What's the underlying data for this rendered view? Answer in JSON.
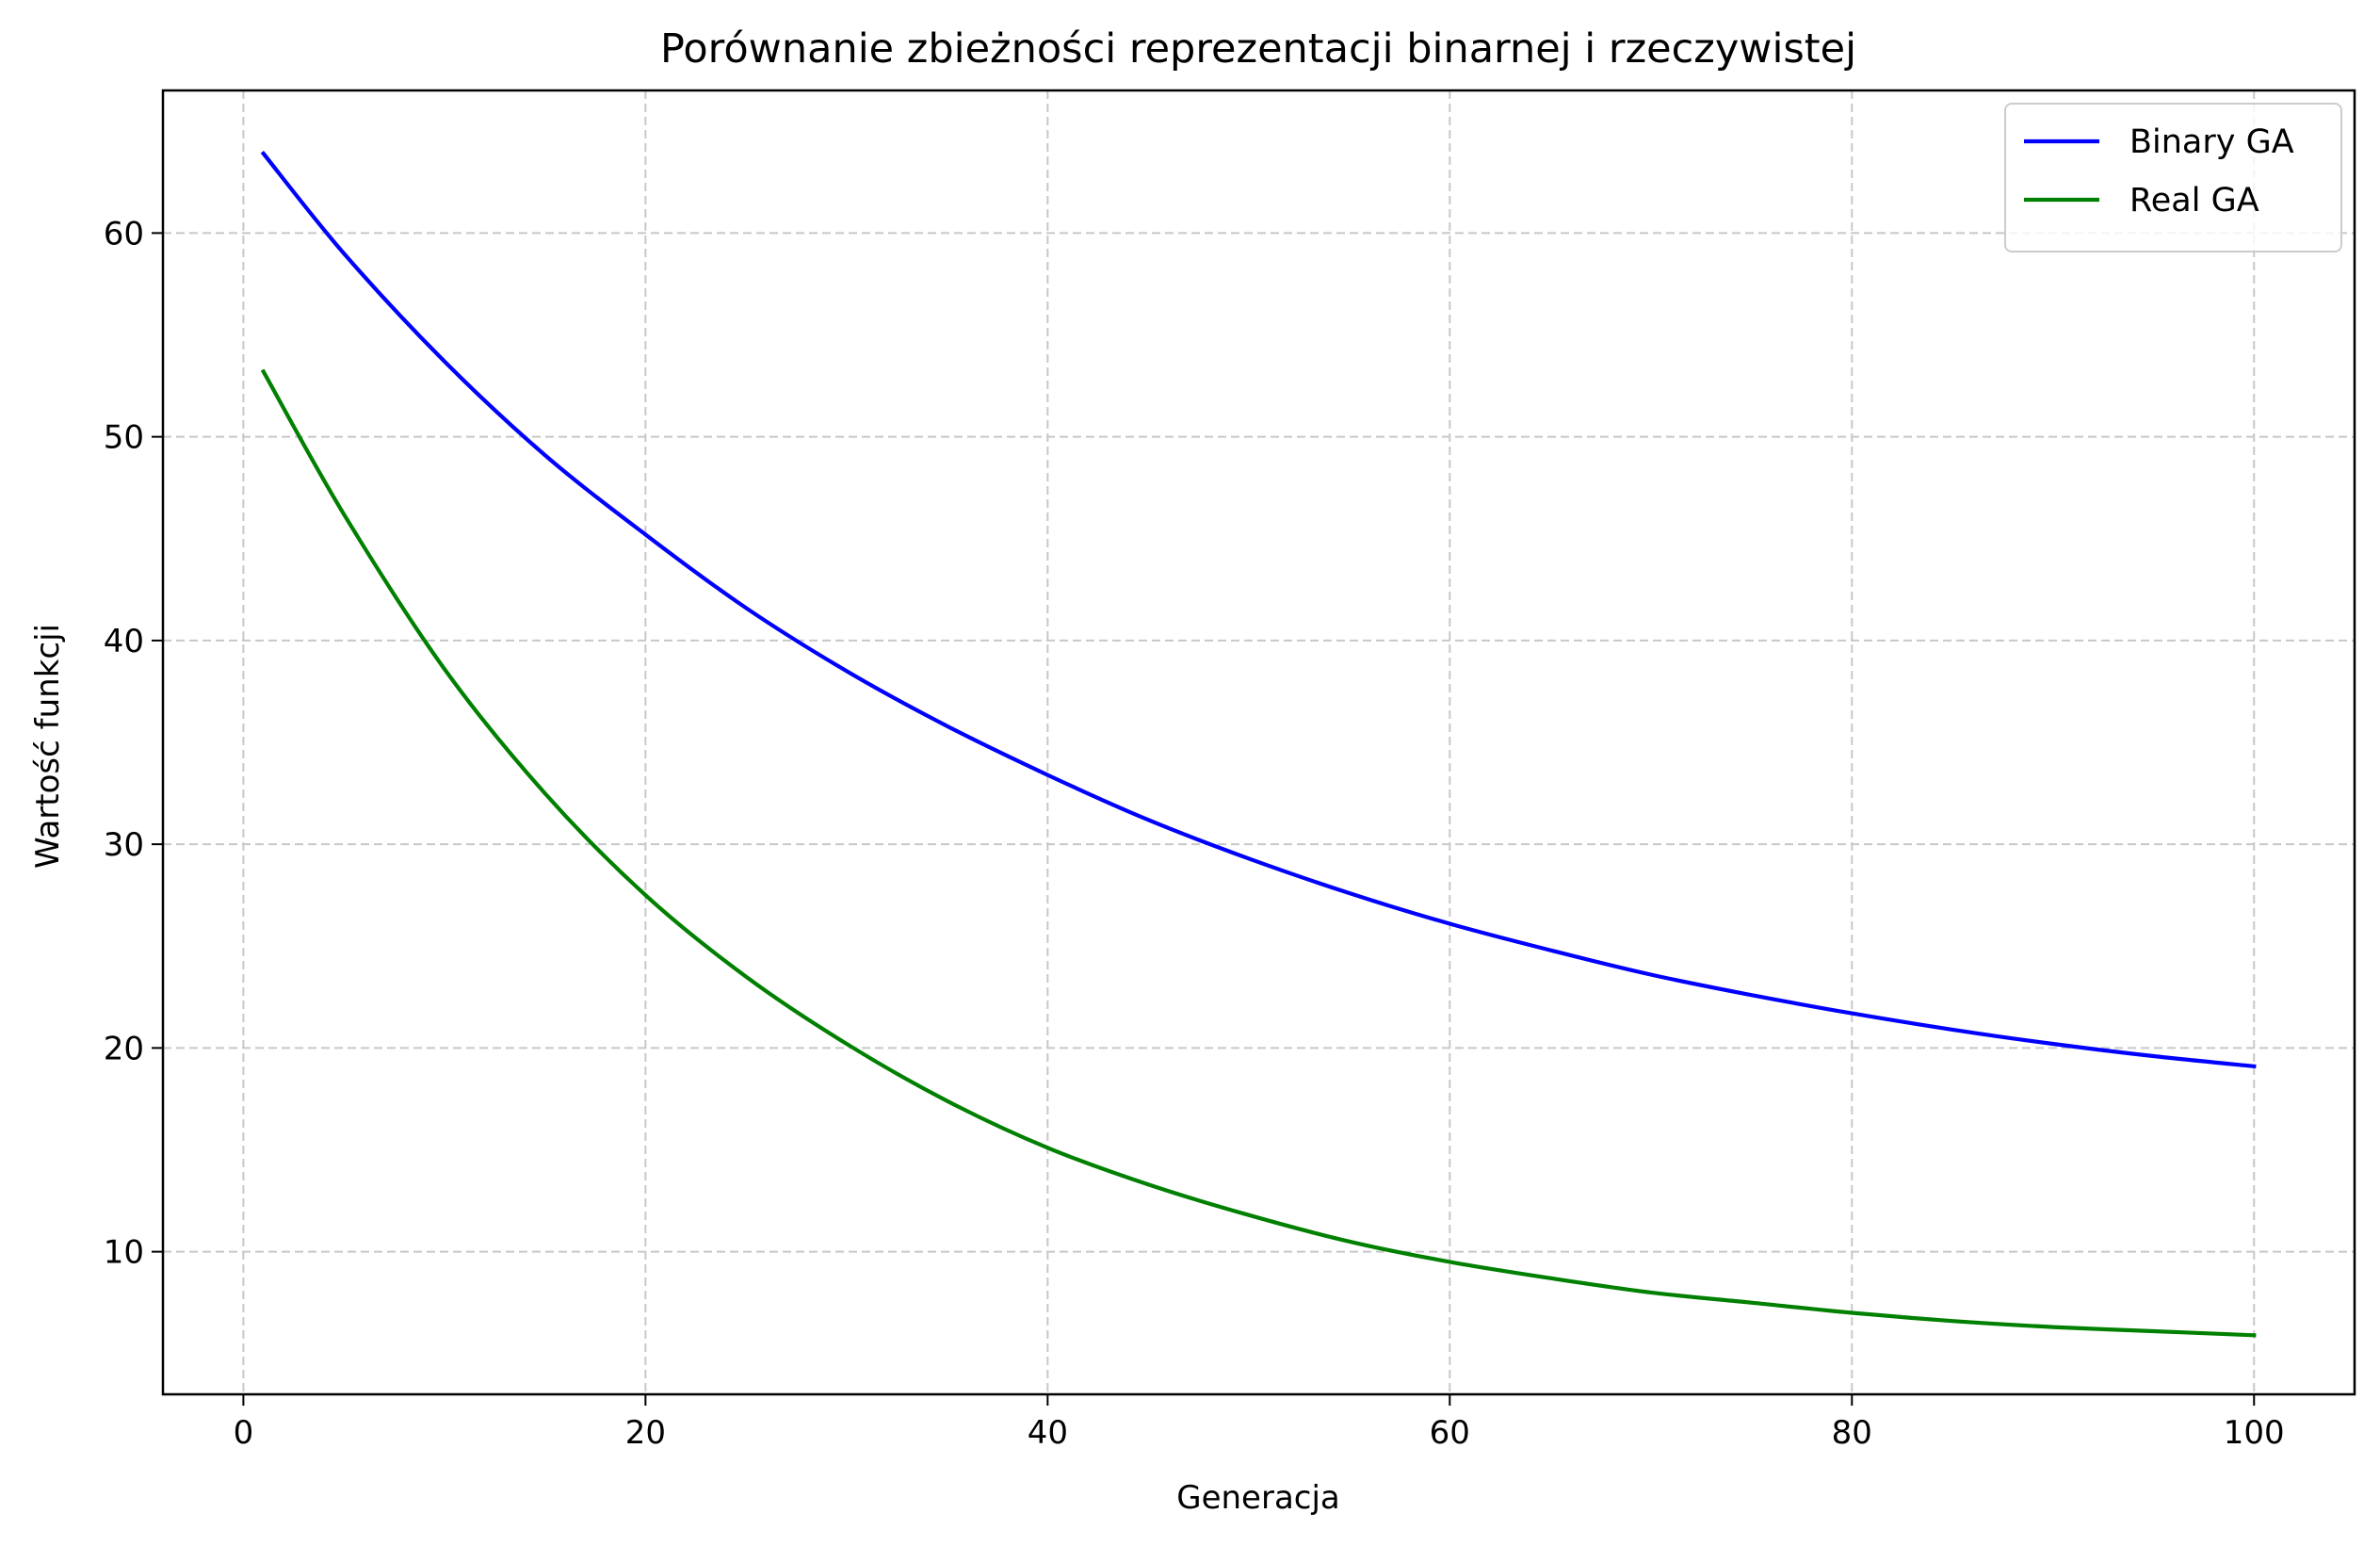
{
  "chart_data": {
    "type": "line",
    "title": "Porównanie zbieżności reprezentacji binarnej i rzeczywistej",
    "xlabel": "Generacja",
    "ylabel": "Wartość funkcji",
    "xlim": [
      -4,
      105
    ],
    "ylim": [
      3,
      67
    ],
    "xticks": [
      0,
      20,
      40,
      60,
      80,
      100
    ],
    "yticks": [
      10,
      20,
      30,
      40,
      50,
      60
    ],
    "grid": true,
    "legend_position": "top-right",
    "series": [
      {
        "name": "Binary GA",
        "color": "#0000ff",
        "x": [
          1,
          5,
          10,
          15,
          20,
          25,
          30,
          35,
          40,
          45,
          50,
          55,
          60,
          65,
          70,
          75,
          80,
          85,
          90,
          95,
          100
        ],
        "y": [
          63.9,
          59.0,
          53.7,
          49.1,
          45.2,
          41.6,
          38.5,
          35.8,
          33.4,
          31.2,
          29.3,
          27.6,
          26.1,
          24.8,
          23.6,
          22.6,
          21.7,
          20.9,
          20.2,
          19.6,
          19.1
        ]
      },
      {
        "name": "Real GA",
        "color": "#008000",
        "x": [
          1,
          5,
          10,
          15,
          20,
          25,
          30,
          35,
          40,
          45,
          50,
          55,
          60,
          65,
          70,
          75,
          80,
          85,
          90,
          95,
          100
        ],
        "y": [
          53.2,
          46.2,
          38.6,
          32.5,
          27.5,
          23.5,
          20.2,
          17.4,
          15.1,
          13.3,
          11.8,
          10.5,
          9.5,
          8.7,
          8.0,
          7.5,
          7.0,
          6.6,
          6.3,
          6.1,
          5.9
        ]
      }
    ]
  }
}
